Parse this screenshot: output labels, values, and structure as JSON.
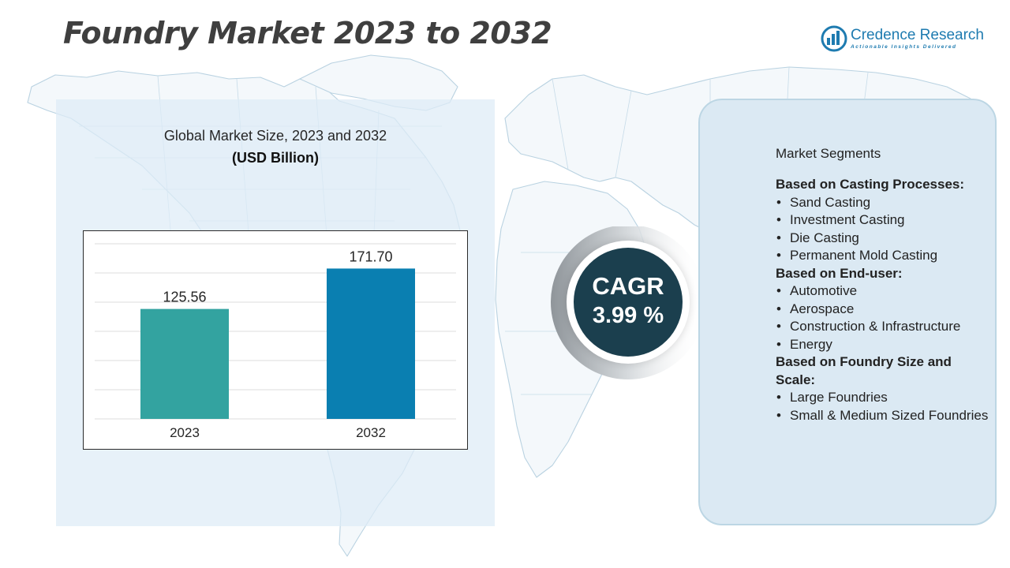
{
  "header": {
    "title": "Foundry Market 2023 to 2032"
  },
  "logo": {
    "name": "Credence Research",
    "tagline": "Actionable Insights Delivered",
    "icon": "credence-logo-icon"
  },
  "chart_data": {
    "type": "bar",
    "title": "Global Market Size, 2023 and 2032",
    "unit_label": "(USD Billion)",
    "categories": [
      "2023",
      "2032"
    ],
    "values": [
      125.56,
      171.7
    ],
    "value_labels": [
      "125.56",
      "171.70"
    ],
    "ylim": [
      0,
      200
    ],
    "grid": true,
    "colors": [
      "#33a3a0",
      "#0a7fb1"
    ]
  },
  "cagr": {
    "label": "CAGR",
    "value": "3.99 %"
  },
  "segments": {
    "heading": "Market Segments",
    "groups": [
      {
        "title": "Based on Casting Processes:",
        "items": [
          "Sand Casting",
          "Investment Casting",
          "Die Casting",
          "Permanent Mold Casting"
        ]
      },
      {
        "title": "Based on End-user:",
        "items": [
          "Automotive",
          "Aerospace",
          "Construction & Infrastructure",
          "Energy"
        ]
      },
      {
        "title": "Based on Foundry Size and Scale:",
        "items": [
          "Large Foundries",
          "Small & Medium Sized Foundries"
        ]
      }
    ]
  },
  "colors": {
    "accent": "#1b3f4e",
    "brand": "#1e7bb0",
    "panel": "#dbe9f3"
  }
}
